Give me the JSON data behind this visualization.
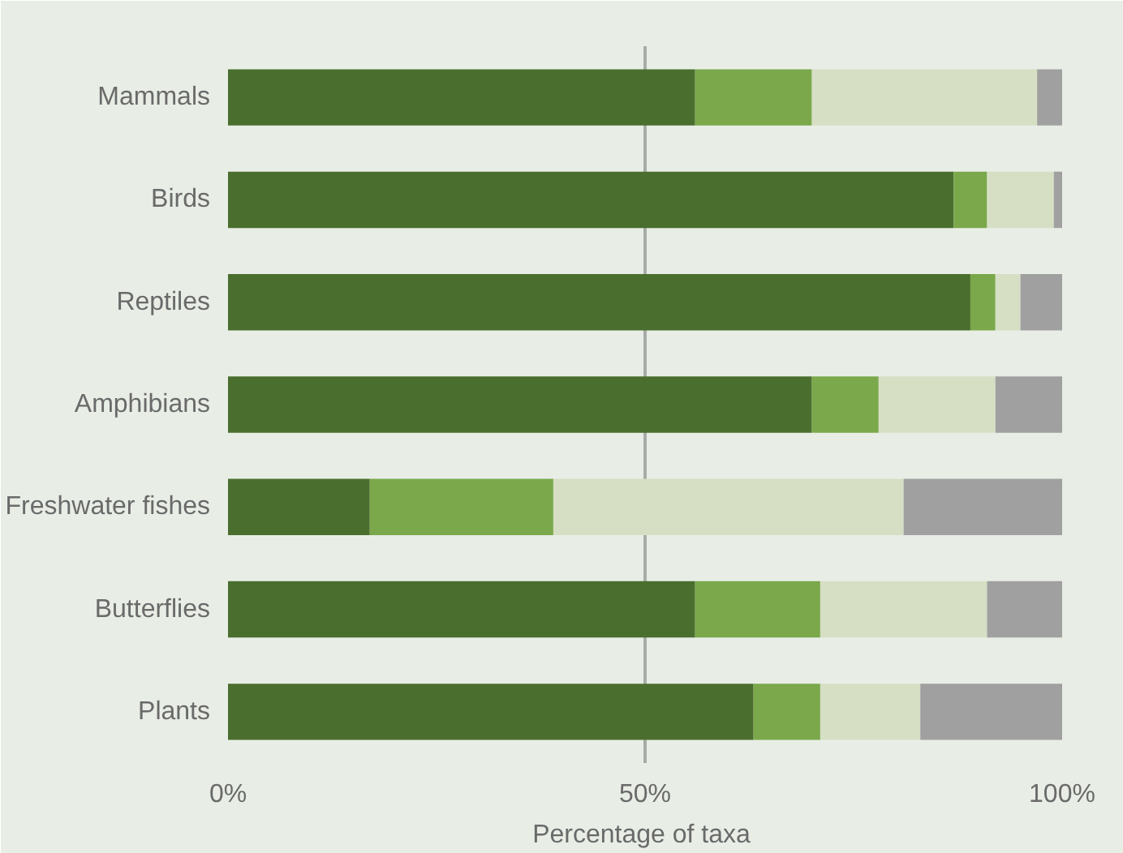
{
  "chart_data": {
    "type": "bar",
    "orientation": "horizontal",
    "stacked": true,
    "categories": [
      "Mammals",
      "Birds",
      "Reptiles",
      "Amphibians",
      "Freshwater fishes",
      "Butterflies",
      "Plants"
    ],
    "series": [
      {
        "color": "#4a6e2e",
        "values": [
          56,
          87,
          89,
          70,
          17,
          56,
          63
        ]
      },
      {
        "color": "#7aa84a",
        "values": [
          14,
          4,
          3,
          8,
          22,
          15,
          8
        ]
      },
      {
        "color": "#d6dfc4",
        "values": [
          27,
          8,
          3,
          14,
          42,
          20,
          12
        ]
      },
      {
        "color": "#a0a0a0",
        "values": [
          3,
          1,
          5,
          8,
          19,
          9,
          17
        ]
      }
    ],
    "xlabel": "Percentage  of taxa",
    "xlim": [
      0,
      100
    ],
    "xticks": [
      {
        "value": 0,
        "label": "0%"
      },
      {
        "value": 50,
        "label": "50%"
      },
      {
        "value": 100,
        "label": "100%"
      }
    ],
    "grid": "x"
  }
}
